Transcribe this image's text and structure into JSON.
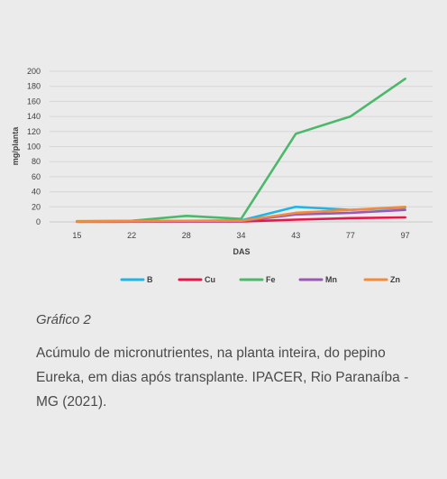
{
  "caption": {
    "title": "Gráfico 2",
    "text": "Acúmulo de micronutrientes, na planta inteira, do pepino Eureka, em dias após transplante. IPACER, Rio Paranaíba -MG (2021)."
  },
  "chart_data": {
    "type": "line",
    "xlabel": "DAS",
    "ylabel": "mg/planta",
    "categories": [
      "15",
      "22",
      "28",
      "34",
      "43",
      "77",
      "97"
    ],
    "ylim": [
      0,
      200
    ],
    "yticks": [
      0,
      20,
      40,
      60,
      80,
      100,
      120,
      140,
      160,
      180,
      200
    ],
    "grid": true,
    "legend_position": "bottom",
    "series": [
      {
        "name": "B",
        "color": "#1fb5e5",
        "values": [
          0.5,
          1,
          1.5,
          2,
          20,
          16,
          19
        ]
      },
      {
        "name": "Cu",
        "color": "#e8174a",
        "values": [
          0.2,
          0.3,
          0.5,
          0.5,
          3,
          5,
          6
        ]
      },
      {
        "name": "Fe",
        "color": "#4cb86a",
        "values": [
          1,
          1.5,
          8,
          4,
          117,
          140,
          190
        ]
      },
      {
        "name": "Mn",
        "color": "#9b59b6",
        "values": [
          0.3,
          0.5,
          1,
          1,
          10,
          12,
          16
        ]
      },
      {
        "name": "Zn",
        "color": "#f28c3c",
        "values": [
          0.5,
          1,
          1.5,
          1.5,
          12,
          16,
          20
        ]
      }
    ]
  }
}
